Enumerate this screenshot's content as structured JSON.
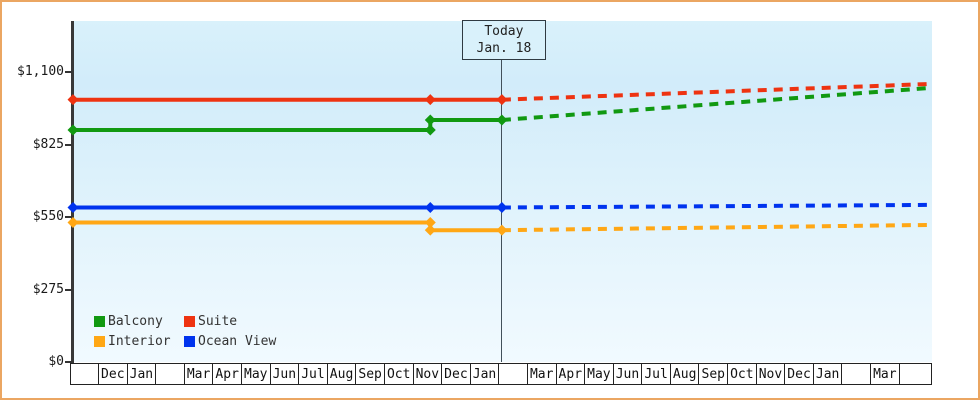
{
  "page": {
    "border_color": "#eba662",
    "background": "#ffffff",
    "plot_bg_gradient": [
      "#d9f1fb",
      "#d2ecfa",
      "#e8f6fd",
      "#f1faff"
    ],
    "axis_color": "#383838"
  },
  "legend": {
    "items": [
      {
        "label": "Balcony",
        "color": "#119911"
      },
      {
        "label": "Suite",
        "color": "#ee3311"
      },
      {
        "label": "Interior",
        "color": "#ffa715"
      },
      {
        "label": "Ocean View",
        "color": "#0033ee"
      }
    ]
  },
  "chart_data": {
    "type": "line",
    "title": "",
    "grid": false,
    "legend_position": "bottom-left inside plot",
    "y_ticks": [
      {
        "label": "$0",
        "value": 0
      },
      {
        "label": "$275",
        "value": 275
      },
      {
        "label": "$550",
        "value": 550
      },
      {
        "label": "$825",
        "value": 825
      },
      {
        "label": "$1,100",
        "value": 1100
      }
    ],
    "ylim": [
      0,
      1293
    ],
    "x_domain_months": [
      -0.87,
      28.15
    ],
    "x_months": [
      "",
      "Dec",
      "Jan",
      "",
      "Mar",
      "Apr",
      "May",
      "Jun",
      "Jul",
      "Aug",
      "Sep",
      "Oct",
      "Nov",
      "Dec",
      "Jan",
      "",
      "Mar",
      "Apr",
      "May",
      "Jun",
      "Jul",
      "Aug",
      "Sep",
      "Oct",
      "Nov",
      "Dec",
      "Jan",
      "",
      "Mar"
    ],
    "today": {
      "label_line1": "Today",
      "label_line2": "Jan. 18",
      "x": 13.62
    },
    "series": [
      {
        "name": "Suite",
        "color": "#ee3311",
        "solid": [
          [
            -0.87,
            995
          ],
          [
            11.2,
            995
          ],
          [
            13.62,
            995
          ]
        ],
        "forecast": [
          [
            13.62,
            995
          ],
          [
            28.15,
            1055
          ]
        ]
      },
      {
        "name": "Balcony",
        "color": "#119911",
        "solid": [
          [
            -0.87,
            880
          ],
          [
            11.2,
            880
          ],
          [
            11.2,
            918
          ],
          [
            13.62,
            918
          ]
        ],
        "forecast": [
          [
            13.62,
            918
          ],
          [
            28.15,
            1040
          ]
        ]
      },
      {
        "name": "Ocean View",
        "color": "#0033ee",
        "solid": [
          [
            -0.87,
            586
          ],
          [
            11.2,
            586
          ],
          [
            13.62,
            586
          ]
        ],
        "forecast": [
          [
            13.62,
            586
          ],
          [
            28.15,
            596
          ]
        ]
      },
      {
        "name": "Interior",
        "color": "#ffa715",
        "solid": [
          [
            -0.87,
            529
          ],
          [
            11.2,
            529
          ],
          [
            11.2,
            500
          ],
          [
            13.62,
            500
          ]
        ],
        "forecast": [
          [
            13.62,
            500
          ],
          [
            28.15,
            520
          ]
        ]
      }
    ]
  }
}
